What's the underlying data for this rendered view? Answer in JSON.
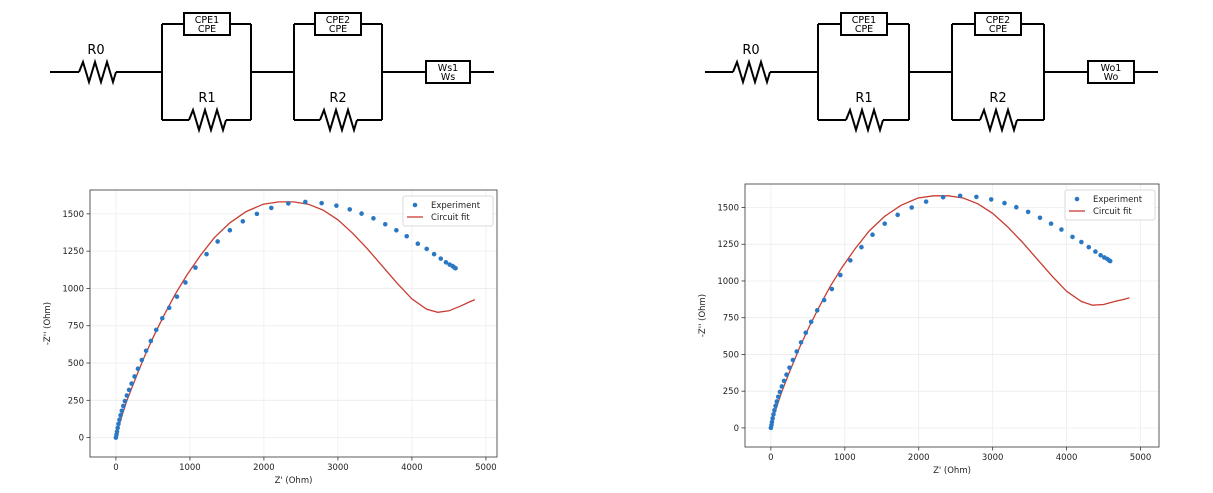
{
  "panels": [
    {
      "circuit": {
        "r0": "R0",
        "cpe1": {
          "name": "CPE1",
          "type": "CPE"
        },
        "r1": "R1",
        "cpe2": {
          "name": "CPE2",
          "type": "CPE"
        },
        "r2": "R2",
        "warburg": {
          "name": "Ws1",
          "type": "Ws"
        }
      }
    },
    {
      "circuit": {
        "r0": "R0",
        "cpe1": {
          "name": "CPE1",
          "type": "CPE"
        },
        "r1": "R1",
        "cpe2": {
          "name": "CPE2",
          "type": "CPE"
        },
        "r2": "R2",
        "warburg": {
          "name": "Wo1",
          "type": "Wo"
        }
      }
    }
  ],
  "chart_data": [
    {
      "type": "scatter+line",
      "xlabel": "Z' (Ohm)",
      "ylabel": "-Z'' (Ohm)",
      "xlim": [
        -350,
        5150
      ],
      "ylim": [
        -130,
        1660
      ],
      "xticks": [
        0,
        1000,
        2000,
        3000,
        4000,
        5000
      ],
      "yticks": [
        0,
        250,
        500,
        750,
        1000,
        1250,
        1500
      ],
      "grid": true,
      "legend_position": "top-right",
      "series": [
        {
          "name": "Experiment",
          "kind": "scatter",
          "color": "#2a78c4",
          "x": [
            0,
            8,
            15,
            24,
            35,
            48,
            63,
            80,
            100,
            122,
            148,
            178,
            212,
            252,
            298,
            350,
            408,
            472,
            545,
            627,
            720,
            825,
            940,
            1075,
            1225,
            1375,
            1540,
            1715,
            1905,
            2100,
            2330,
            2560,
            2780,
            2980,
            3160,
            3320,
            3480,
            3640,
            3790,
            3930,
            4080,
            4200,
            4300,
            4390,
            4460,
            4510,
            4550,
            4575,
            4590
          ],
          "y": [
            0,
            20,
            40,
            65,
            92,
            120,
            150,
            180,
            212,
            245,
            282,
            320,
            362,
            410,
            462,
            520,
            582,
            648,
            722,
            800,
            870,
            945,
            1040,
            1140,
            1230,
            1315,
            1390,
            1450,
            1500,
            1540,
            1570,
            1580,
            1572,
            1555,
            1530,
            1502,
            1470,
            1430,
            1390,
            1350,
            1300,
            1265,
            1230,
            1200,
            1175,
            1160,
            1150,
            1140,
            1135
          ]
        },
        {
          "name": "Circuit fit",
          "kind": "line",
          "color": "#c83c32",
          "x": [
            0,
            40,
            90,
            150,
            220,
            300,
            400,
            520,
            650,
            800,
            960,
            1140,
            1330,
            1540,
            1760,
            1990,
            2200,
            2400,
            2600,
            2800,
            3000,
            3200,
            3400,
            3600,
            3800,
            4000,
            4200,
            4350,
            4500,
            4650,
            4780,
            4850
          ],
          "y": [
            0,
            80,
            160,
            250,
            340,
            440,
            560,
            690,
            820,
            960,
            1090,
            1220,
            1340,
            1440,
            1515,
            1565,
            1580,
            1580,
            1565,
            1525,
            1460,
            1370,
            1265,
            1150,
            1035,
            930,
            860,
            840,
            850,
            880,
            910,
            925
          ]
        }
      ]
    },
    {
      "type": "scatter+line",
      "xlabel": "Z' (Ohm)",
      "ylabel": "-Z'' (Ohm)",
      "xlim": [
        -350,
        5250
      ],
      "ylim": [
        -130,
        1660
      ],
      "xticks": [
        0,
        1000,
        2000,
        3000,
        4000,
        5000
      ],
      "yticks": [
        0,
        250,
        500,
        750,
        1000,
        1250,
        1500
      ],
      "grid": true,
      "legend_position": "top-right",
      "series": [
        {
          "name": "Experiment",
          "kind": "scatter",
          "color": "#2a78c4",
          "x": [
            0,
            8,
            15,
            24,
            35,
            48,
            63,
            80,
            100,
            122,
            148,
            178,
            212,
            252,
            298,
            350,
            408,
            472,
            545,
            627,
            720,
            825,
            940,
            1075,
            1225,
            1375,
            1540,
            1715,
            1905,
            2100,
            2330,
            2560,
            2780,
            2980,
            3160,
            3320,
            3480,
            3640,
            3790,
            3930,
            4080,
            4200,
            4300,
            4390,
            4460,
            4510,
            4550,
            4575,
            4590
          ],
          "y": [
            0,
            20,
            40,
            65,
            92,
            120,
            150,
            180,
            212,
            245,
            282,
            320,
            362,
            410,
            462,
            520,
            582,
            648,
            722,
            800,
            870,
            945,
            1040,
            1140,
            1230,
            1315,
            1390,
            1450,
            1500,
            1540,
            1570,
            1580,
            1572,
            1555,
            1530,
            1502,
            1470,
            1430,
            1390,
            1350,
            1300,
            1265,
            1230,
            1200,
            1175,
            1160,
            1150,
            1140,
            1135
          ]
        },
        {
          "name": "Circuit fit",
          "kind": "line",
          "color": "#c83c32",
          "x": [
            0,
            40,
            90,
            150,
            220,
            300,
            400,
            520,
            650,
            800,
            960,
            1140,
            1330,
            1540,
            1760,
            1990,
            2200,
            2400,
            2600,
            2800,
            3000,
            3200,
            3400,
            3600,
            3800,
            4000,
            4200,
            4350,
            4500,
            4650,
            4780,
            4850
          ],
          "y": [
            0,
            80,
            160,
            250,
            340,
            440,
            560,
            690,
            820,
            960,
            1090,
            1220,
            1340,
            1440,
            1515,
            1565,
            1580,
            1580,
            1565,
            1525,
            1460,
            1370,
            1265,
            1150,
            1035,
            930,
            860,
            835,
            840,
            860,
            875,
            885
          ]
        }
      ]
    }
  ]
}
